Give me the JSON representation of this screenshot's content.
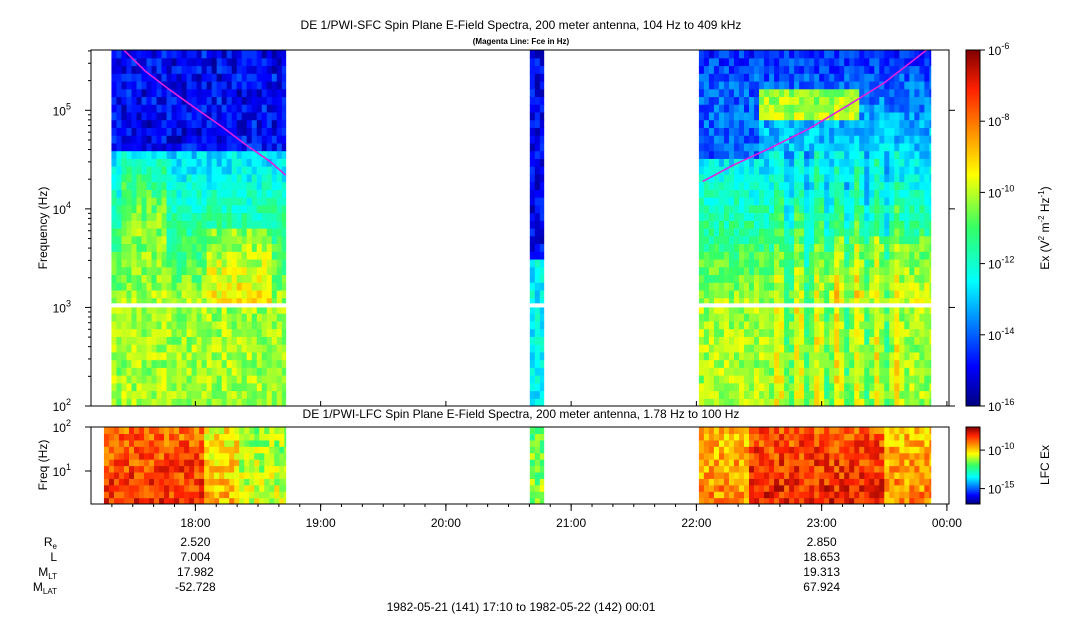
{
  "chart_data": [
    {
      "type": "heatmap",
      "title": "DE 1/PWI-SFC  Spin Plane E-Field Spectra, 200 meter antenna, 104 Hz to 409 kHz",
      "subtitle": "(Magenta Line: Fce in Hz)",
      "ylabel": "Frequency (Hz)",
      "yscale": "log",
      "ylim": [
        100,
        409000
      ],
      "yticks": [
        {
          "value": 100,
          "base": "10",
          "exp": "2"
        },
        {
          "value": 1000,
          "base": "10",
          "exp": "3"
        },
        {
          "value": 10000,
          "base": "10",
          "exp": "4"
        },
        {
          "value": 100000,
          "base": "10",
          "exp": "5"
        }
      ],
      "x_range_hours": [
        17.1667,
        24.0167
      ],
      "data_segments_hours": [
        [
          17.33,
          18.72
        ],
        [
          20.67,
          20.78
        ],
        [
          22.02,
          23.87
        ]
      ],
      "band_gap_hz": [
        1000,
        1100
      ],
      "colorbar": {
        "label_prefix": "Ex (V",
        "label_sup1": "2",
        "label_mid": " m",
        "label_sup2": "-2",
        "label_mid2": " Hz",
        "label_sup3": "-1",
        "label_suffix": ")",
        "scale": "log",
        "range": [
          1e-16,
          1e-06
        ],
        "ticks": [
          {
            "value": 1e-06,
            "base": "10",
            "exp": "-6"
          },
          {
            "value": 1e-08,
            "base": "10",
            "exp": "-8"
          },
          {
            "value": 1e-10,
            "base": "10",
            "exp": "-10"
          },
          {
            "value": 1e-12,
            "base": "10",
            "exp": "-12"
          },
          {
            "value": 1e-14,
            "base": "10",
            "exp": "-14"
          },
          {
            "value": 1e-16,
            "base": "10",
            "exp": "-16"
          }
        ]
      },
      "fce_line": {
        "color": "#e020e0",
        "series": [
          {
            "x": [
              17.42,
              17.6,
              17.8,
              18.0,
              18.2,
              18.4,
              18.6,
              18.72
            ],
            "y": [
              420000,
              250000,
              160000,
              105000,
              70000,
              45000,
              30000,
              22000
            ]
          },
          {
            "x": [
              22.05,
              22.3,
              22.6,
              22.9,
              23.2,
              23.5,
              23.85
            ],
            "y": [
              19000,
              28000,
              42000,
              65000,
              110000,
              190000,
              420000
            ]
          }
        ]
      }
    },
    {
      "type": "heatmap",
      "title": "DE 1/PWI-LFC  Spin Plane E-Field Spectra, 200 meter antenna, 1.78 Hz to 100 Hz",
      "ylabel": "Freq (Hz)",
      "yscale": "log",
      "ylim": [
        1.78,
        100
      ],
      "yticks": [
        {
          "value": 10,
          "base": "10",
          "exp": "1"
        },
        {
          "value": 100,
          "base": "10",
          "exp": "2"
        }
      ],
      "data_segments_hours": [
        [
          17.27,
          18.72
        ],
        [
          20.67,
          20.78
        ],
        [
          22.02,
          23.87
        ]
      ],
      "colorbar": {
        "label": "LFC Ex",
        "scale": "log",
        "range": [
          1e-17,
          1e-07
        ],
        "ticks": [
          {
            "value": 1e-10,
            "base": "10",
            "exp": "-10"
          },
          {
            "value": 1e-15,
            "base": "10",
            "exp": "-15"
          }
        ]
      }
    }
  ],
  "x_axis": {
    "ticks": [
      {
        "value": 18,
        "label": "18:00"
      },
      {
        "value": 19,
        "label": "19:00"
      },
      {
        "value": 20,
        "label": "20:00"
      },
      {
        "value": 21,
        "label": "21:00"
      },
      {
        "value": 22,
        "label": "22:00"
      },
      {
        "value": 23,
        "label": "23:00"
      },
      {
        "value": 24,
        "label": "00:00"
      }
    ],
    "ephemeris": {
      "rows": [
        {
          "label": "R",
          "sub": "e"
        },
        {
          "label": "L",
          "sub": ""
        },
        {
          "label": "M",
          "sub": "LT"
        },
        {
          "label": "M",
          "sub": "LAT"
        }
      ],
      "columns": [
        {
          "at": 18,
          "values": [
            "2.520",
            "7.004",
            "17.982",
            "-52.728"
          ]
        },
        {
          "at": 23,
          "values": [
            "2.850",
            "18.653",
            "19.313",
            "67.924"
          ]
        }
      ]
    },
    "footer": "1982-05-21 (141) 17:10 to 1982-05-22 (142) 00:01"
  }
}
